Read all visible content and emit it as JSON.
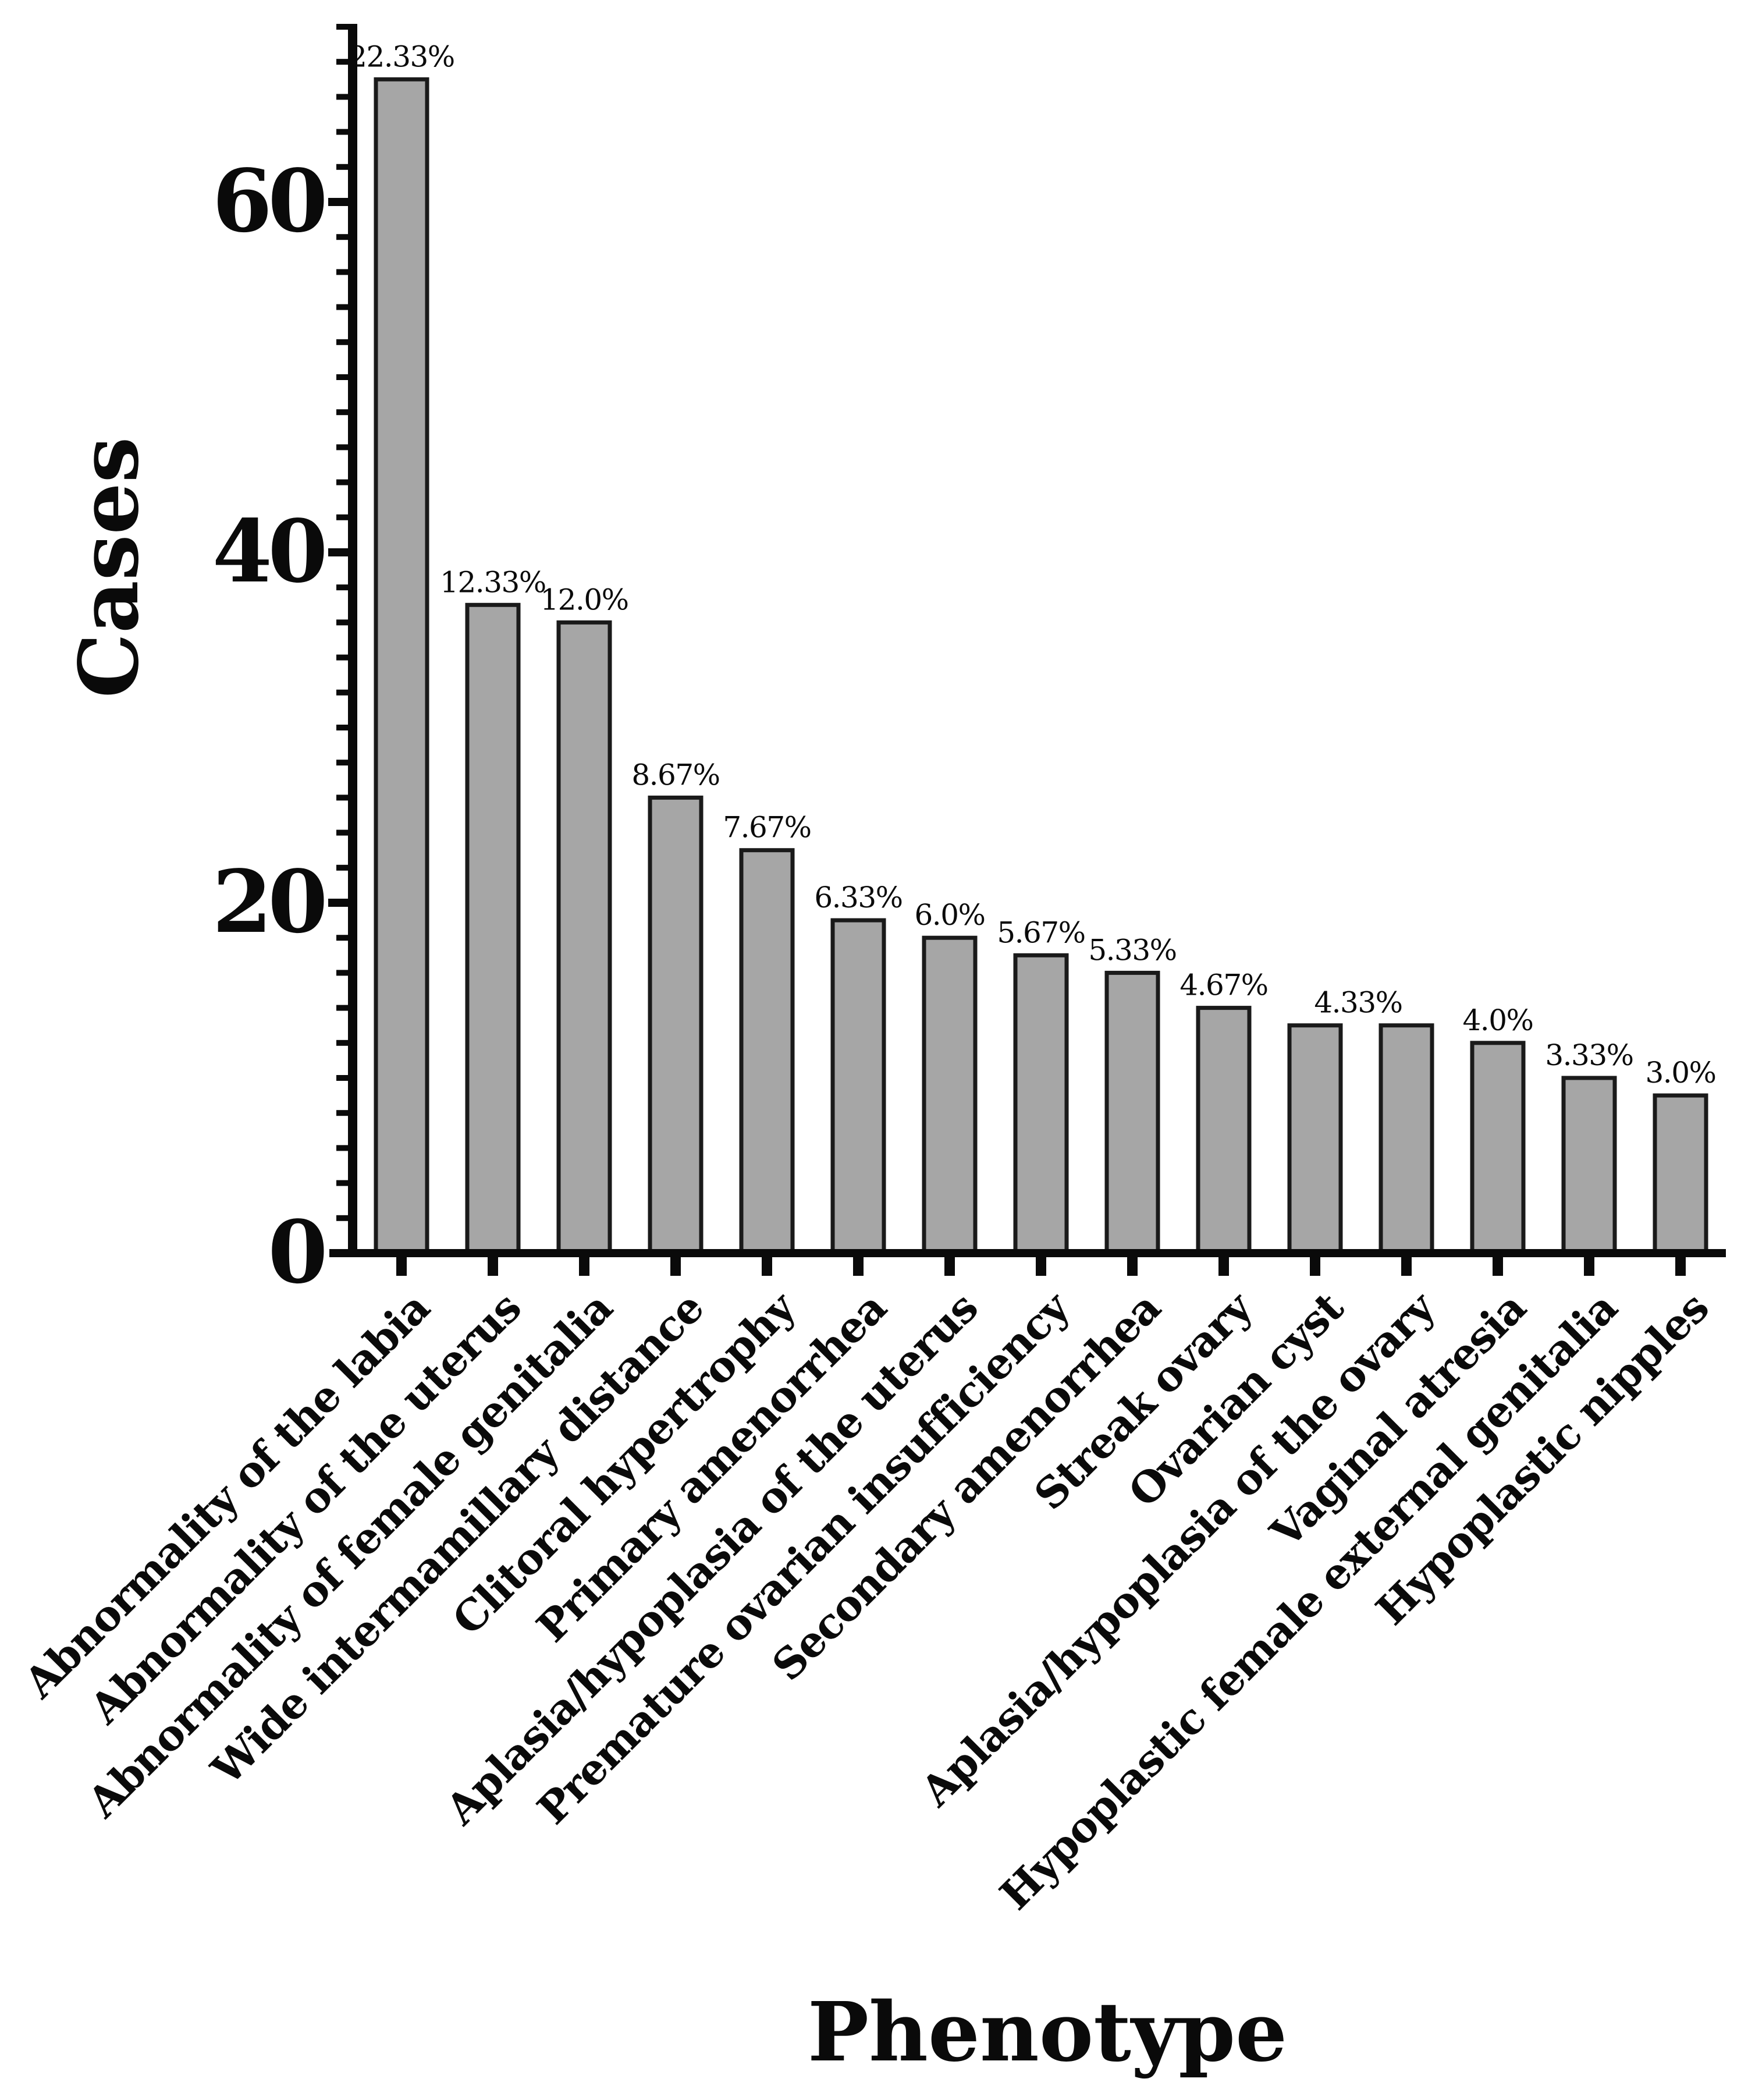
{
  "figure": {
    "background": "#ffffff",
    "text_color": "#0a0a0a"
  },
  "chart_data": {
    "type": "bar",
    "title": "",
    "xlabel": "Phenotype",
    "ylabel": "Cases",
    "categories": [
      "Abnormality of the labia",
      "Abnormality of the uterus",
      "Abnormality of female genitalia",
      "Wide intermamillary distance",
      "Clitoral hypertrophy",
      "Primary amenorrhea",
      "Aplasia/hypoplasia of the uterus",
      "Premature ovarian insufficiency",
      "Secondary amenorrhea",
      "Streak ovary",
      "Ovarian cyst",
      "Aplasia/hypoplasia of the ovary",
      "Vaginal atresia",
      "Hypoplastic female external genitalia",
      "Hypoplastic nipples"
    ],
    "values": [
      67,
      37,
      36,
      26,
      23,
      19,
      18,
      17,
      16,
      14,
      13,
      13,
      12,
      10,
      9
    ],
    "percent_labels": [
      "22.33%",
      "12.33%",
      "12.0%",
      "8.67%",
      "7.67%",
      "6.33%",
      "6.0%",
      "5.67%",
      "5.33%",
      "4.67%",
      "4.33%",
      "",
      "4.0%",
      "3.33%",
      "3.0%"
    ],
    "ylim": [
      0,
      70
    ],
    "y_major_ticks": [
      0,
      20,
      40,
      60
    ],
    "y_minor_tick_step": 2,
    "grid": false,
    "legend": "none",
    "bar_fill": "#a6a6a6",
    "bar_edge": "#1a1a1a",
    "axis_color": "#0a0a0a",
    "x_tick_rotation_deg": -45,
    "value_label_dx": {
      "10": 74
    }
  }
}
